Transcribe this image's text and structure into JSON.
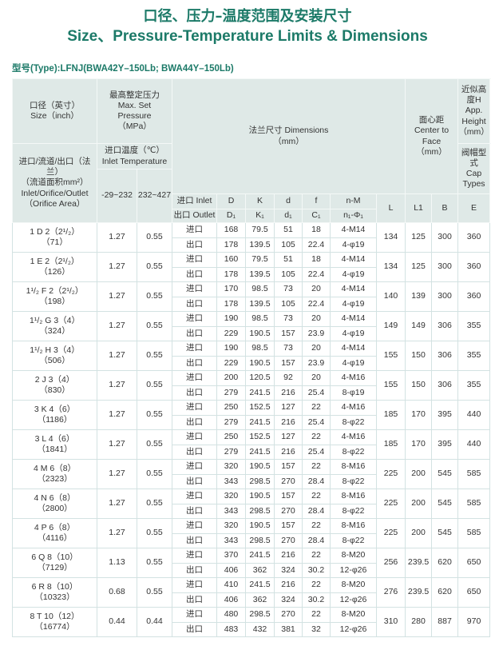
{
  "title_cn": "口径、压力–温度范围及安装尺寸",
  "title_en": "Size、Pressure-Temperature Limits & Dimensions",
  "type_label": "型号(Type):LFNJ(BWA42Y–150Lb; BWA44Y–150Lb)",
  "header": {
    "size_cn": "口径（英寸）",
    "size_en": "Size（inch）",
    "pressure_cn": "最高整定压力",
    "pressure_en": "Max. Set Pressure",
    "pressure_unit": "（MPa）",
    "orifice_cn": "进口/流道/出口（法兰）",
    "orifice_area_cn": "（流道面积mm²）",
    "orifice_en": "Inlet/Orifice/Outlet",
    "orifice_area_en": "（Orifice Area）",
    "temp_cn": "进口温度（℃）",
    "temp_en": "Inlet Temperature",
    "temp1": "-29~232",
    "temp2": "232~427",
    "dims": "法兰尺寸 Dimensions",
    "dims_unit": "（mm）",
    "ctf_cn": "面心距",
    "ctf_en": "Center to Face",
    "ctf_unit": "（mm）",
    "height_cn": "近似高度H",
    "height_en": "App. Height",
    "height_unit": "（mm）",
    "cap_cn": "阀帽型式",
    "cap_en": "Cap Types",
    "inlet": "进口 Inlet",
    "outlet": "出口 Outlet",
    "inlet_cols": [
      "D",
      "K",
      "d",
      "f",
      "n-M"
    ],
    "outlet_cols": [
      "D₁",
      "K₁",
      "d₁",
      "C₁",
      "n₁-Φ₁"
    ],
    "L": "L",
    "L1": "L1",
    "B": "B",
    "E": "E"
  },
  "rows": [
    {
      "size": "1 D 2（2¹/₂）",
      "area": "（71）",
      "p1": "1.27",
      "p2": "0.55",
      "in_label": "进口",
      "out_label": "出口",
      "inlet": [
        "168",
        "79.5",
        "51",
        "18",
        "4-M14"
      ],
      "outlet": [
        "178",
        "139.5",
        "105",
        "22.4",
        "4-φ19"
      ],
      "L": "134",
      "L1": "125",
      "B": "300",
      "E": "360"
    },
    {
      "size": "1 E 2（2¹/₂）",
      "area": "（126）",
      "p1": "1.27",
      "p2": "0.55",
      "in_label": "进口",
      "out_label": "出口",
      "inlet": [
        "160",
        "79.5",
        "51",
        "18",
        "4-M14"
      ],
      "outlet": [
        "178",
        "139.5",
        "105",
        "22.4",
        "4-φ19"
      ],
      "L": "134",
      "L1": "125",
      "B": "300",
      "E": "360"
    },
    {
      "size": "1¹/₂ F 2（2¹/₂）",
      "area": "（198）",
      "p1": "1.27",
      "p2": "0.55",
      "in_label": "进口",
      "out_label": "出口",
      "inlet": [
        "170",
        "98.5",
        "73",
        "20",
        "4-M14"
      ],
      "outlet": [
        "178",
        "139.5",
        "105",
        "22.4",
        "4-φ19"
      ],
      "L": "140",
      "L1": "139",
      "B": "300",
      "E": "360"
    },
    {
      "size": "1¹/₂ G 3（4）",
      "area": "（324）",
      "p1": "1.27",
      "p2": "0.55",
      "in_label": "进口",
      "out_label": "出口",
      "inlet": [
        "190",
        "98.5",
        "73",
        "20",
        "4-M14"
      ],
      "outlet": [
        "229",
        "190.5",
        "157",
        "23.9",
        "4-φ19"
      ],
      "L": "149",
      "L1": "149",
      "B": "306",
      "E": "355"
    },
    {
      "size": "1¹/₂ H 3（4）",
      "area": "（506）",
      "p1": "1.27",
      "p2": "0.55",
      "in_label": "进口",
      "out_label": "出口",
      "inlet": [
        "190",
        "98.5",
        "73",
        "20",
        "4-M14"
      ],
      "outlet": [
        "229",
        "190.5",
        "157",
        "23.9",
        "4-φ19"
      ],
      "L": "155",
      "L1": "150",
      "B": "306",
      "E": "355"
    },
    {
      "size": "2 J 3（4）",
      "area": "（830）",
      "p1": "1.27",
      "p2": "0.55",
      "in_label": "进口",
      "out_label": "出口",
      "inlet": [
        "200",
        "120.5",
        "92",
        "20",
        "4-M16"
      ],
      "outlet": [
        "279",
        "241.5",
        "216",
        "25.4",
        "8-φ19"
      ],
      "L": "155",
      "L1": "150",
      "B": "306",
      "E": "355"
    },
    {
      "size": "3 K 4（6）",
      "area": "（1186）",
      "p1": "1.27",
      "p2": "0.55",
      "in_label": "进口",
      "out_label": "出口",
      "inlet": [
        "250",
        "152.5",
        "127",
        "22",
        "4-M16"
      ],
      "outlet": [
        "279",
        "241.5",
        "216",
        "25.4",
        "8-φ22"
      ],
      "L": "185",
      "L1": "170",
      "B": "395",
      "E": "440"
    },
    {
      "size": "3 L 4（6）",
      "area": "（1841）",
      "p1": "1.27",
      "p2": "0.55",
      "in_label": "进口",
      "out_label": "出口",
      "inlet": [
        "250",
        "152.5",
        "127",
        "22",
        "4-M16"
      ],
      "outlet": [
        "279",
        "241.5",
        "216",
        "25.4",
        "8-φ22"
      ],
      "L": "185",
      "L1": "170",
      "B": "395",
      "E": "440"
    },
    {
      "size": "4 M 6（8）",
      "area": "（2323）",
      "p1": "1.27",
      "p2": "0.55",
      "in_label": "进口",
      "out_label": "出口",
      "inlet": [
        "320",
        "190.5",
        "157",
        "22",
        "8-M16"
      ],
      "outlet": [
        "343",
        "298.5",
        "270",
        "28.4",
        "8-φ22"
      ],
      "L": "225",
      "L1": "200",
      "B": "545",
      "E": "585"
    },
    {
      "size": "4 N 6（8）",
      "area": "（2800）",
      "p1": "1.27",
      "p2": "0.55",
      "in_label": "进口",
      "out_label": "出口",
      "inlet": [
        "320",
        "190.5",
        "157",
        "22",
        "8-M16"
      ],
      "outlet": [
        "343",
        "298.5",
        "270",
        "28.4",
        "8-φ22"
      ],
      "L": "225",
      "L1": "200",
      "B": "545",
      "E": "585"
    },
    {
      "size": "4 P 6（8）",
      "area": "（4116）",
      "p1": "1.27",
      "p2": "0.55",
      "in_label": "进口",
      "out_label": "出口",
      "inlet": [
        "320",
        "190.5",
        "157",
        "22",
        "8-M16"
      ],
      "outlet": [
        "343",
        "298.5",
        "270",
        "28.4",
        "8-φ22"
      ],
      "L": "225",
      "L1": "200",
      "B": "545",
      "E": "585"
    },
    {
      "size": "6 Q 8（10）",
      "area": "（7129）",
      "p1": "1.13",
      "p2": "0.55",
      "in_label": "进口",
      "out_label": "出口",
      "inlet": [
        "370",
        "241.5",
        "216",
        "22",
        "8-M20"
      ],
      "outlet": [
        "406",
        "362",
        "324",
        "30.2",
        "12-φ26"
      ],
      "L": "256",
      "L1": "239.5",
      "B": "620",
      "E": "650"
    },
    {
      "size": "6 R 8（10）",
      "area": "（10323）",
      "p1": "0.68",
      "p2": "0.55",
      "in_label": "进口",
      "out_label": "出口",
      "inlet": [
        "410",
        "241.5",
        "216",
        "22",
        "8-M20"
      ],
      "outlet": [
        "406",
        "362",
        "324",
        "30.2",
        "12-φ26"
      ],
      "L": "276",
      "L1": "239.5",
      "B": "620",
      "E": "650"
    },
    {
      "size": "8 T 10（12）",
      "area": "（16774）",
      "p1": "0.44",
      "p2": "0.44",
      "in_label": "进口",
      "out_label": "出口",
      "inlet": [
        "480",
        "298.5",
        "270",
        "22",
        "8-M20"
      ],
      "outlet": [
        "483",
        "432",
        "381",
        "32",
        "12-φ26"
      ],
      "L": "310",
      "L1": "280",
      "B": "887",
      "E": "970"
    }
  ]
}
